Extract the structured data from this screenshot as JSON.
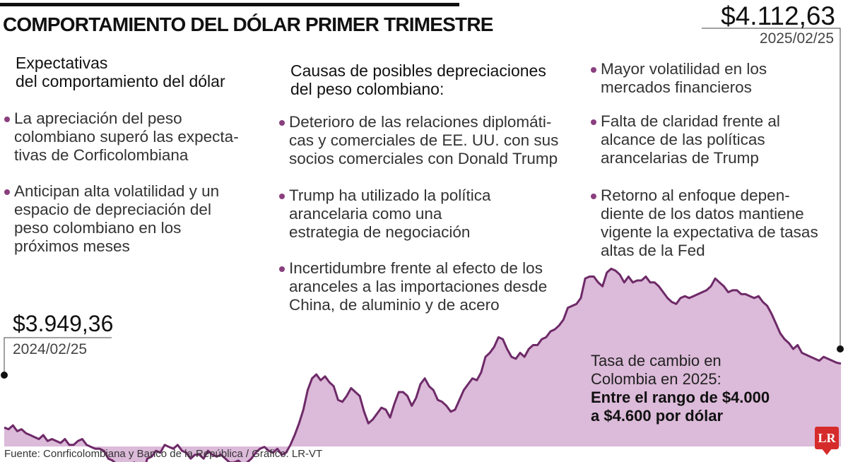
{
  "header": {
    "title": "COMPORTAMIENTO DEL DÓLAR PRIMER TRIMESTRE"
  },
  "columns": [
    {
      "heading": "Expectativas\ndel comportamiento del dólar",
      "bullets": [
        "La apreciación del peso\ncolombiano superó las expecta-\ntivas de Corficolombiana",
        "Anticipan alta volatilidad y un\nespacio de depreciación del\npeso colombiano en los\npróximos meses"
      ]
    },
    {
      "heading": "Causas de posibles depreciaciones\ndel peso colombiano:",
      "bullets": [
        "Deterioro de las relaciones diplomáti-\ncas y comerciales de EE. UU. con sus\nsocios comerciales con Donald Trump",
        "Trump ha utilizado la política\narancelaria como una\nestrategia de negociación",
        "Incertidumbre frente al efecto de los\naranceles a las importaciones desde\nChina, de aluminio y de acero"
      ]
    },
    {
      "heading": "",
      "bullets": [
        "Mayor volatilidad en los\nmercados financieros",
        "Falta de claridad frente al\nalcance de las políticas\narancelarias de Trump",
        "Retorno al enfoque depen-\ndiente de los datos mantiene\nvigente la expectativa de tasas\naltas de la Fed"
      ]
    }
  ],
  "start_point": {
    "value": "$3.949,36",
    "date": "2024/02/25"
  },
  "end_point": {
    "value": "$4.112,63",
    "date": "2025/02/25"
  },
  "note": {
    "line1": "Tasa de cambio en",
    "line2": "Colombia en 2025:",
    "strong1": "Entre el rango de $4.000",
    "strong2": "a $4.600 por dólar"
  },
  "source": "Fuente: Conrficolombiana y Banco de la República / Gráfico: LR-VT",
  "logo_text": "LR",
  "colors": {
    "area_fill": "#dcbad9",
    "line": "#6e2a68",
    "bullet": "#8a3f7e",
    "logo": "#d62b2b"
  },
  "chart_data": {
    "type": "area",
    "x_start": "2024/02/25",
    "x_end": "2025/02/25",
    "y_unit": "COP por dólar",
    "ylim": [
      3800,
      4500
    ],
    "first_value": 3949.36,
    "last_value": 4112.63,
    "values": [
      3949.36,
      3945,
      3955,
      3940,
      3945,
      3935,
      3930,
      3925,
      3920,
      3930,
      3915,
      3920,
      3915,
      3910,
      3920,
      3905,
      3905,
      3915,
      3920,
      3905,
      3900,
      3895,
      3895,
      3890,
      3870,
      3865,
      3855,
      3850,
      3845,
      3855,
      3860,
      3835,
      3830,
      3870,
      3875,
      3890,
      3885,
      3905,
      3900,
      3895,
      3905,
      3890,
      3885,
      3870,
      3880,
      3880,
      3870,
      3890,
      3880,
      3875,
      3880,
      3870,
      3860,
      3860,
      3865,
      3855,
      3860,
      3870,
      3885,
      3895,
      3900,
      3890,
      3885,
      3895,
      3880,
      3885,
      3905,
      3930,
      3960,
      3995,
      4045,
      4075,
      4085,
      4070,
      4080,
      4065,
      4055,
      4020,
      4015,
      4030,
      4050,
      4040,
      4030,
      3990,
      3960,
      3970,
      3985,
      4000,
      3995,
      3975,
      4010,
      4040,
      4040,
      4030,
      4005,
      4025,
      4060,
      4075,
      4055,
      4045,
      4020,
      4015,
      4005,
      3990,
      3995,
      4020,
      4045,
      4060,
      4075,
      4070,
      4090,
      4130,
      4140,
      4155,
      4180,
      4175,
      4150,
      4130,
      4125,
      4140,
      4130,
      4150,
      4160,
      4160,
      4175,
      4180,
      4195,
      4200,
      4210,
      4225,
      4255,
      4260,
      4265,
      4280,
      4330,
      4335,
      4335,
      4320,
      4310,
      4345,
      4355,
      4350,
      4340,
      4320,
      4335,
      4320,
      4325,
      4325,
      4335,
      4320,
      4320,
      4310,
      4295,
      4280,
      4270,
      4265,
      4280,
      4285,
      4280,
      4285,
      4290,
      4295,
      4300,
      4310,
      4330,
      4320,
      4310,
      4295,
      4300,
      4300,
      4290,
      4290,
      4285,
      4280,
      4285,
      4270,
      4260,
      4240,
      4215,
      4190,
      4175,
      4165,
      4150,
      4160,
      4140,
      4135,
      4130,
      4125,
      4120,
      4130,
      4125,
      4120,
      4115,
      4112.63
    ]
  }
}
